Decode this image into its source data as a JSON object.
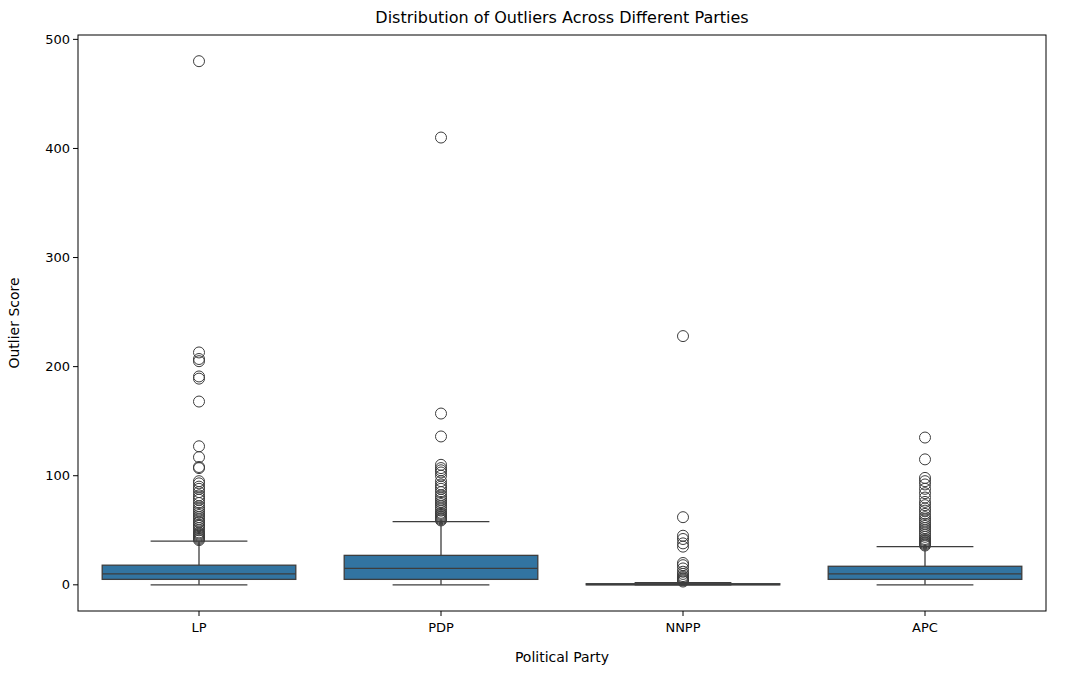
{
  "chart_data": {
    "type": "box",
    "title": "Distribution of Outliers Across Different Parties",
    "x_label": "Political Party",
    "y_label": "Outlier Score",
    "categories": [
      "LP",
      "PDP",
      "NNPP",
      "APC"
    ],
    "color": "#3274a1",
    "ylim": [
      -24,
      504
    ],
    "yticks": [
      0,
      100,
      200,
      300,
      400,
      500
    ],
    "grid": false,
    "boxes": [
      {
        "min": 0,
        "q1": 5,
        "median": 10,
        "q3": 18,
        "max": 40,
        "outliers": [
          41,
          42,
          43,
          44,
          45,
          46,
          47,
          48,
          50,
          52,
          54,
          55,
          57,
          58,
          60,
          62,
          64,
          66,
          68,
          70,
          72,
          75,
          78,
          80,
          82,
          85,
          88,
          90,
          93,
          95,
          107,
          108,
          117,
          127,
          168,
          189,
          191,
          205,
          207,
          213,
          480
        ]
      },
      {
        "min": 0,
        "q1": 5,
        "median": 15,
        "q3": 27,
        "max": 58,
        "outliers": [
          59,
          60,
          61,
          62,
          63,
          64,
          65,
          66,
          68,
          70,
          72,
          74,
          76,
          78,
          80,
          82,
          85,
          88,
          90,
          92,
          95,
          100,
          103,
          105,
          107,
          110,
          136,
          157,
          410
        ]
      },
      {
        "min": 0,
        "q1": 0,
        "median": 0.3,
        "q3": 1,
        "max": 2,
        "outliers": [
          3,
          4,
          5,
          6,
          7,
          8,
          10,
          12,
          15,
          18,
          20,
          35,
          38,
          42,
          45,
          62,
          228
        ]
      },
      {
        "min": 0,
        "q1": 5,
        "median": 10,
        "q3": 17,
        "max": 35,
        "outliers": [
          36,
          37,
          38,
          39,
          40,
          41,
          42,
          44,
          46,
          48,
          50,
          52,
          54,
          56,
          58,
          60,
          62,
          65,
          68,
          70,
          73,
          76,
          80,
          84,
          88,
          92,
          95,
          98,
          115,
          135
        ]
      }
    ]
  }
}
